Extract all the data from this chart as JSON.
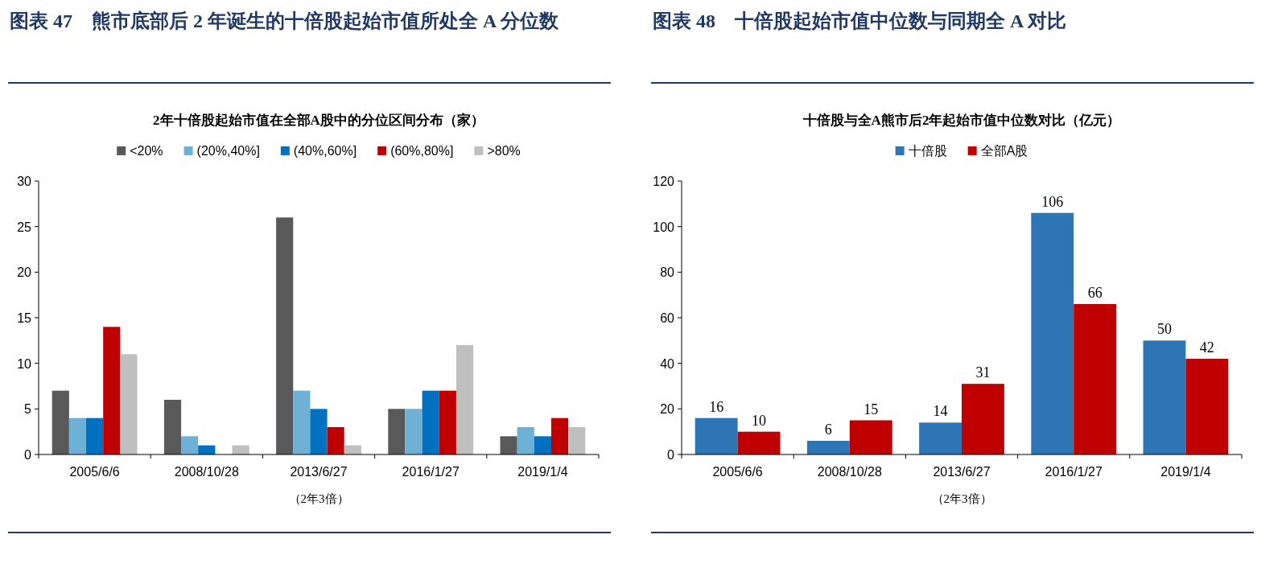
{
  "chart_data": [
    {
      "type": "bar",
      "title": "图表 47　熊市底部后 2 年诞生的十倍股起始市值所处全 A 分位数",
      "subtitle": "2年十倍股起始市值在全部A股中的分位区间分布（家）",
      "xlabel": "（2年3倍）",
      "categories": [
        "2005/6/6",
        "2008/10/28",
        "2013/6/27",
        "2016/1/27",
        "2019/1/4"
      ],
      "series": [
        {
          "name": "<20%",
          "color": "#595959",
          "values": [
            7,
            6,
            26,
            5,
            2
          ]
        },
        {
          "name": "(20%,40%]",
          "color": "#6fb1d6",
          "values": [
            4,
            2,
            7,
            5,
            3
          ]
        },
        {
          "name": "(40%,60%]",
          "color": "#0070c0",
          "values": [
            4,
            1,
            5,
            7,
            2
          ]
        },
        {
          "name": "(60%,80%]",
          "color": "#c00000",
          "values": [
            14,
            0,
            3,
            7,
            4
          ]
        },
        {
          "name": ">80%",
          "color": "#bfbfbf",
          "values": [
            11,
            1,
            1,
            12,
            3
          ]
        }
      ],
      "ylim": [
        0,
        30
      ],
      "yticks": [
        0,
        5,
        10,
        15,
        20,
        25,
        30
      ],
      "legend": "top"
    },
    {
      "type": "bar",
      "title": "图表 48　十倍股起始市值中位数与同期全 A 对比",
      "subtitle": "十倍股与全A熊市后2年起始市值中位数对比（亿元）",
      "xlabel": "（2年3倍）",
      "categories": [
        "2005/6/6",
        "2008/10/28",
        "2013/6/27",
        "2016/1/27",
        "2019/1/4"
      ],
      "series": [
        {
          "name": "十倍股",
          "color": "#2e75b6",
          "values": [
            16,
            6,
            14,
            106,
            50
          ]
        },
        {
          "name": "全部A股",
          "color": "#c00000",
          "values": [
            10,
            15,
            31,
            66,
            42
          ]
        }
      ],
      "ylim": [
        0,
        120
      ],
      "yticks": [
        0,
        20,
        40,
        60,
        80,
        100,
        120
      ],
      "legend": "top",
      "data_labels": true
    }
  ]
}
